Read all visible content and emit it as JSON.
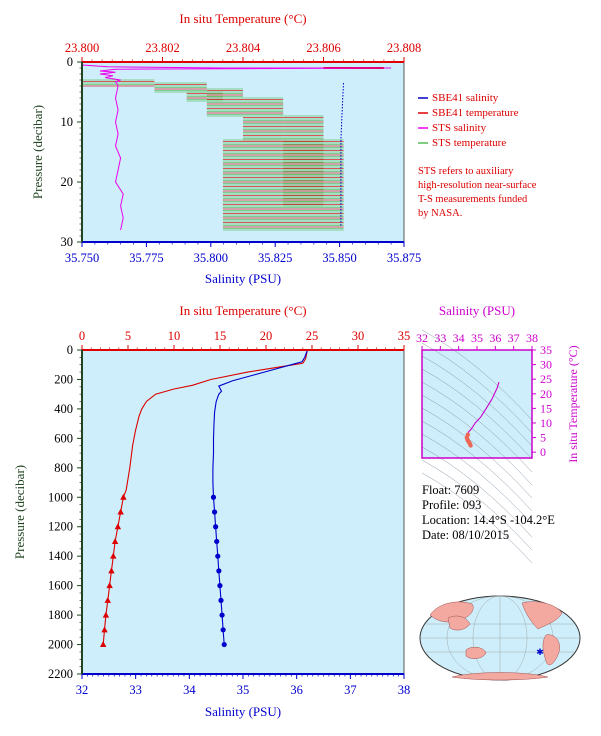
{
  "colors": {
    "plot_bg": "#cdeefa",
    "salinity_axis": "#0000cc",
    "temperature_axis": "#dd0000",
    "pressure_axis": "#224422",
    "sbe_salinity": "#0000cc",
    "sbe_temperature": "#dd0000",
    "sts_salinity": "#ee00ee",
    "sts_temperature": "#55bb55",
    "ts_axis": "#cc00cc"
  },
  "top_panel": {
    "temp_axis_title": "In situ Temperature (°C)",
    "temp_ticks": [
      "23.800",
      "23.802",
      "23.804",
      "23.806",
      "23.808"
    ],
    "sal_axis_title": "Salinity (PSU)",
    "sal_ticks": [
      "35.750",
      "35.775",
      "35.800",
      "35.825",
      "35.850",
      "35.875"
    ],
    "pressure_title": "Pressure (decibar)",
    "pressure_ticks": [
      "0",
      "10",
      "20",
      "30"
    ],
    "legend": [
      "SBE41 salinity",
      "SBE41 temperature",
      "STS salinity",
      "STS temperature"
    ],
    "note": [
      "STS refers to auxiliary",
      "high-resolution near-surface",
      "T-S measurements funded",
      "by NASA."
    ]
  },
  "bottom_panel": {
    "temp_axis_title": "In situ Temperature (°C)",
    "temp_ticks": [
      "0",
      "5",
      "10",
      "15",
      "20",
      "25",
      "30",
      "35"
    ],
    "sal_axis_title": "Salinity (PSU)",
    "sal_ticks": [
      "32",
      "33",
      "34",
      "35",
      "36",
      "37",
      "38"
    ],
    "pressure_title": "Pressure (decibar)",
    "pressure_ticks": [
      "0",
      "200",
      "400",
      "600",
      "800",
      "1000",
      "1200",
      "1400",
      "1600",
      "1800",
      "2000",
      "2200"
    ]
  },
  "ts_panel": {
    "sal_axis_title": "Salinity (PSU)",
    "sal_ticks": [
      "32",
      "33",
      "34",
      "35",
      "36",
      "37",
      "38"
    ],
    "temp_axis_title": "In situ Temperature (°C)",
    "temp_ticks": [
      "0",
      "5",
      "10",
      "15",
      "20",
      "25",
      "30",
      "35"
    ]
  },
  "info": {
    "float": "Float:  7609",
    "profile": "Profile:  093",
    "location": "Location:  14.4°S  -104.2°E",
    "date": "Date:  08/10/2015"
  },
  "chart_data": [
    {
      "type": "line",
      "name": "near-surface profile",
      "ylabel": "Pressure (decibar)",
      "xlabel_bottom": "Salinity (PSU)",
      "xlabel_top": "In situ Temperature (°C)",
      "xlim_salinity": [
        35.75,
        35.875
      ],
      "xlim_temperature": [
        23.8,
        23.808
      ],
      "ylim_pressure": [
        0,
        30
      ],
      "y_inverted": true,
      "series": [
        {
          "name": "SBE41 salinity",
          "axis": "salinity",
          "points": [
            [
              35.8515,
              3.5
            ],
            [
              35.851,
              8
            ],
            [
              35.8505,
              13
            ],
            [
              35.8505,
              18
            ],
            [
              35.8505,
              21
            ],
            [
              35.8505,
              25
            ],
            [
              35.8505,
              27.5
            ]
          ]
        },
        {
          "name": "SBE41 temperature",
          "axis": "temperature",
          "points": [
            [
              23.806,
              1
            ],
            [
              23.8075,
              1
            ]
          ]
        },
        {
          "name": "STS salinity",
          "axis": "salinity",
          "points": [
            [
              35.75,
              0.5
            ],
            [
              35.76,
              0.8
            ],
            [
              35.805,
              1.0
            ],
            [
              35.87,
              1.0
            ],
            [
              35.763,
              1.2
            ],
            [
              35.757,
              1.5
            ],
            [
              35.763,
              1.7
            ],
            [
              35.757,
              2.0
            ],
            [
              35.762,
              2.3
            ],
            [
              35.759,
              2.6
            ],
            [
              35.765,
              3.0
            ],
            [
              35.763,
              3.3
            ],
            [
              35.764,
              4
            ],
            [
              35.763,
              6
            ],
            [
              35.764,
              8
            ],
            [
              35.763,
              10
            ],
            [
              35.764,
              12
            ],
            [
              35.763,
              14
            ],
            [
              35.765,
              16
            ],
            [
              35.764,
              18
            ],
            [
              35.763,
              20
            ],
            [
              35.766,
              22
            ],
            [
              35.765,
              24
            ],
            [
              35.766,
              26
            ],
            [
              35.765,
              28
            ]
          ]
        },
        {
          "name": "STS temperature",
          "axis": "temperature",
          "steps": [
            {
              "p0": 3,
              "p1": 4,
              "t0": 23.8,
              "t1": 23.8018
            },
            {
              "p0": 3.5,
              "p1": 5,
              "t0": 23.8018,
              "t1": 23.8031
            },
            {
              "p0": 5,
              "p1": 6.5,
              "t0": 23.8026,
              "t1": 23.8035
            },
            {
              "p0": 4.5,
              "p1": 9,
              "t0": 23.8031,
              "t1": 23.804
            },
            {
              "p0": 6,
              "p1": 13,
              "t0": 23.804,
              "t1": 23.805
            },
            {
              "p0": 9,
              "p1": 24,
              "t0": 23.805,
              "t1": 23.806
            },
            {
              "p0": 13,
              "p1": 28,
              "t0": 23.8035,
              "t1": 23.8065
            }
          ]
        }
      ]
    },
    {
      "type": "line",
      "name": "full-depth profile",
      "ylabel": "Pressure (decibar)",
      "xlabel_bottom": "Salinity (PSU)",
      "xlabel_top": "In situ Temperature (°C)",
      "xlim_salinity": [
        32,
        38
      ],
      "xlim_temperature": [
        0,
        35
      ],
      "ylim_pressure": [
        0,
        2200
      ],
      "y_inverted": true,
      "series": [
        {
          "name": "SBE41 salinity",
          "axis": "salinity",
          "points": [
            [
              36.2,
              0
            ],
            [
              36.15,
              50
            ],
            [
              36.1,
              80
            ],
            [
              35.9,
              100
            ],
            [
              35.6,
              130
            ],
            [
              35.2,
              170
            ],
            [
              34.8,
              210
            ],
            [
              34.55,
              245
            ],
            [
              34.6,
              280
            ],
            [
              34.55,
              300
            ],
            [
              34.5,
              350
            ],
            [
              34.47,
              420
            ],
            [
              34.46,
              500
            ],
            [
              34.45,
              600
            ],
            [
              34.45,
              700
            ],
            [
              34.44,
              800
            ],
            [
              34.44,
              900
            ],
            [
              34.45,
              1000
            ],
            [
              34.47,
              1100
            ],
            [
              34.49,
              1200
            ],
            [
              34.51,
              1300
            ],
            [
              34.53,
              1400
            ],
            [
              34.55,
              1500
            ],
            [
              34.57,
              1600
            ],
            [
              34.59,
              1700
            ],
            [
              34.61,
              1800
            ],
            [
              34.63,
              1900
            ],
            [
              34.65,
              2000
            ]
          ],
          "markers_from_pressure": 1000
        },
        {
          "name": "SBE41 temperature",
          "axis": "temperature",
          "points": [
            [
              24.5,
              0
            ],
            [
              24.3,
              60
            ],
            [
              24,
              90
            ],
            [
              22,
              110
            ],
            [
              18,
              150
            ],
            [
              14,
              200
            ],
            [
              12,
              240
            ],
            [
              10,
              265
            ],
            [
              8,
              300
            ],
            [
              7,
              350
            ],
            [
              6.5,
              400
            ],
            [
              6.2,
              450
            ],
            [
              5.8,
              550
            ],
            [
              5.5,
              650
            ],
            [
              5.2,
              800
            ],
            [
              4.8,
              950
            ],
            [
              4.5,
              1000
            ],
            [
              4.2,
              1100
            ],
            [
              3.9,
              1200
            ],
            [
              3.6,
              1300
            ],
            [
              3.4,
              1400
            ],
            [
              3.2,
              1500
            ],
            [
              3.0,
              1600
            ],
            [
              2.8,
              1700
            ],
            [
              2.6,
              1800
            ],
            [
              2.45,
              1900
            ],
            [
              2.3,
              2000
            ]
          ],
          "markers_from_pressure": 1000
        }
      ]
    },
    {
      "type": "scatter",
      "name": "T-S diagram",
      "xlabel": "Salinity (PSU)",
      "ylabel": "In situ Temperature (°C)",
      "xlim": [
        32,
        38
      ],
      "ylim": [
        -2,
        35
      ],
      "series": [
        {
          "name": "T-S profile",
          "points": [
            [
              36.2,
              24
            ],
            [
              36.1,
              22
            ],
            [
              35.8,
              18
            ],
            [
              35.5,
              15
            ],
            [
              35.2,
              12
            ],
            [
              34.9,
              10
            ],
            [
              34.7,
              8
            ],
            [
              34.55,
              7
            ],
            [
              34.5,
              6
            ],
            [
              34.45,
              5
            ],
            [
              34.47,
              4.5
            ],
            [
              34.5,
              4
            ],
            [
              34.55,
              3.5
            ],
            [
              34.6,
              3
            ],
            [
              34.65,
              2.3
            ]
          ]
        }
      ]
    }
  ]
}
